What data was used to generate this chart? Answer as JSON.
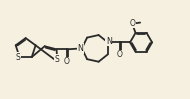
{
  "bg_color": "#f5f0e0",
  "line_color": "#2a2a2a",
  "lw": 1.3,
  "figsize": [
    1.9,
    0.99
  ],
  "dpi": 100,
  "xlim": [
    0,
    10
  ],
  "ylim": [
    0,
    5.2
  ]
}
